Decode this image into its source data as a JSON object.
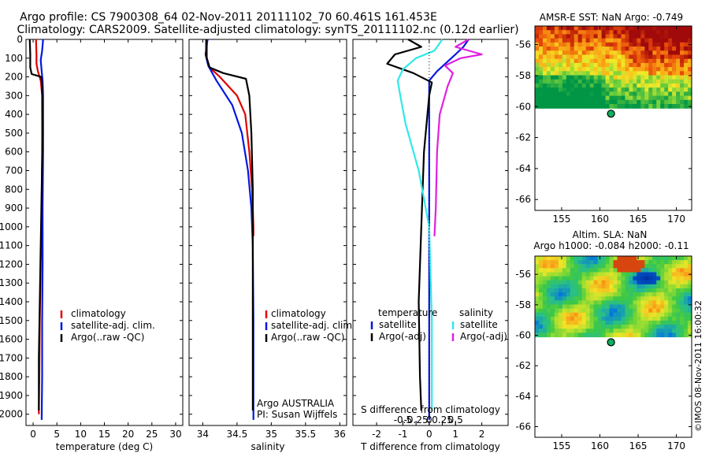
{
  "title": {
    "line1": "Argo profile: CS 7900308_64 02-Nov-2011 20111102_70 60.461S 161.453E",
    "line2": "Climatology: CARS2009. Satellite-adjusted climatology: synTS_20111102.nc (0.12d earlier)"
  },
  "copyright": "©IMOS 08-Nov-2011 16:00:32",
  "colors": {
    "climatology": "#e00000",
    "satellite": "#0018e0",
    "argo": "#000000",
    "cyan": "#30e8e8",
    "magenta": "#e020e0"
  },
  "chart_data": [
    {
      "id": "temperature",
      "type": "line",
      "xlabel": "temperature (deg C)",
      "xlim": [
        -1.5,
        31.5
      ],
      "ylim": [
        2060,
        0
      ],
      "xticks": [
        0,
        5,
        10,
        15,
        20,
        25,
        30
      ],
      "yticks": [
        0,
        100,
        200,
        300,
        400,
        500,
        600,
        700,
        800,
        900,
        1000,
        1100,
        1200,
        1300,
        1400,
        1500,
        1600,
        1700,
        1800,
        1900,
        2000
      ],
      "legend": [
        "climatology",
        "satellite-adj. clim.",
        "Argo(..raw -QC)"
      ],
      "series": [
        {
          "name": "climatology",
          "color": "climatology",
          "x": [
            0.6,
            0.7,
            0.7,
            1.0,
            1.6,
            1.9,
            1.9,
            1.8,
            1.6,
            1.4,
            1.3,
            1.2
          ],
          "y": [
            0,
            80,
            130,
            170,
            220,
            300,
            600,
            900,
            1200,
            1500,
            1800,
            2000
          ]
        },
        {
          "name": "satellite-adj. clim.",
          "color": "satellite",
          "x": [
            2.1,
            1.9,
            1.6,
            1.8,
            2.0,
            2.1,
            2.1,
            2.0,
            2.0,
            1.9,
            1.9,
            1.8
          ],
          "y": [
            0,
            60,
            110,
            170,
            220,
            300,
            600,
            900,
            1200,
            1500,
            1800,
            2030
          ]
        },
        {
          "name": "Argo(..raw -QC)",
          "color": "argo",
          "x": [
            -0.7,
            -0.6,
            -0.6,
            -0.3,
            1.7,
            1.9,
            2.0,
            1.8,
            1.6,
            1.4,
            1.2,
            1.2
          ],
          "y": [
            0,
            80,
            150,
            185,
            200,
            250,
            500,
            800,
            1100,
            1400,
            1700,
            1980
          ]
        }
      ]
    },
    {
      "id": "salinity",
      "type": "line",
      "xlabel": "salinity",
      "xlim": [
        33.8,
        36.1
      ],
      "ylim": [
        2060,
        0
      ],
      "xticks": [
        34,
        34.5,
        35,
        35.5,
        36
      ],
      "xtick_labels": [
        "34",
        "34.5",
        "35",
        "35.5",
        "36"
      ],
      "legend": [
        "climatology",
        "satellite-adj. clim.",
        "Argo(..raw -QC)"
      ],
      "annotation": [
        "Argo AUSTRALIA",
        "PI: Susan Wijffels"
      ],
      "series": [
        {
          "name": "climatology",
          "color": "climatology",
          "x": [
            34.06,
            34.06,
            34.1,
            34.25,
            34.5,
            34.62,
            34.68,
            34.72,
            34.74,
            34.74
          ],
          "y": [
            0,
            100,
            150,
            200,
            300,
            400,
            600,
            800,
            1000,
            1050
          ]
        },
        {
          "name": "satellite-adj. clim.",
          "color": "satellite",
          "x": [
            34.07,
            34.04,
            34.08,
            34.2,
            34.43,
            34.57,
            34.66,
            34.71,
            34.73,
            34.74,
            34.74
          ],
          "y": [
            0,
            80,
            140,
            220,
            350,
            500,
            700,
            900,
            1100,
            1500,
            2030
          ]
        },
        {
          "name": "Argo(..raw -QC)",
          "color": "argo",
          "x": [
            34.05,
            34.05,
            34.1,
            34.3,
            34.63,
            34.68,
            34.71,
            34.73,
            34.73,
            34.73,
            34.73
          ],
          "y": [
            0,
            90,
            150,
            180,
            210,
            300,
            500,
            800,
            1200,
            1600,
            1980
          ]
        }
      ]
    },
    {
      "id": "difference",
      "type": "line",
      "xlabel": "T difference from climatology",
      "top_label": "S difference from climatology",
      "xlim": [
        -2.9,
        3.0
      ],
      "ylim": [
        2060,
        0
      ],
      "xticks": [
        -2,
        -1,
        0,
        1,
        2
      ],
      "xtick_labels": [
        "-2",
        "-1",
        "0",
        "1",
        "2"
      ],
      "sticks": [
        -1.0,
        -0.5,
        0,
        0.5,
        1.0
      ],
      "stick_labels": [
        "-0.5",
        "-0.25",
        "0",
        "0.25",
        "0.5"
      ],
      "legend_headers": [
        "temperature",
        "salinity"
      ],
      "legend": [
        {
          "label": "satellite",
          "color": "satellite",
          "col": 0
        },
        {
          "label": "Argo(-adj)",
          "color": "argo",
          "col": 0
        },
        {
          "label": "satellite",
          "color": "cyan",
          "col": 1
        },
        {
          "label": "Argo(-adj)",
          "color": "magenta",
          "col": 1
        }
      ],
      "series": [
        {
          "name": "temperature satellite",
          "color": "satellite",
          "x": [
            1.5,
            1.3,
            1.0,
            0.3,
            0.0,
            0.0,
            0.0,
            0.0,
            0.0,
            0.0
          ],
          "y": [
            0,
            40,
            80,
            170,
            220,
            300,
            700,
            1200,
            1700,
            2030
          ]
        },
        {
          "name": "temperature Argo(-adj)",
          "color": "argo",
          "x": [
            -0.8,
            -0.3,
            -1.3,
            -1.6,
            -0.6,
            0.1,
            0.0,
            -0.2,
            -0.3,
            -0.4,
            -0.35,
            -0.3
          ],
          "y": [
            0,
            40,
            80,
            130,
            180,
            230,
            300,
            600,
            1000,
            1400,
            1800,
            1980
          ]
        },
        {
          "name": "salinity satellite",
          "color": "cyan",
          "x": [
            0.5,
            0.2,
            -0.5,
            -1.0,
            -1.2,
            -1.1,
            -0.9,
            -0.4,
            0.0,
            0.1,
            0.1
          ],
          "y": [
            0,
            60,
            100,
            160,
            220,
            300,
            450,
            700,
            1000,
            1500,
            1980
          ]
        },
        {
          "name": "salinity Argo(-adj)",
          "color": "magenta",
          "x": [
            1.5,
            1.0,
            2.0,
            1.2,
            0.6,
            0.9,
            0.7,
            0.4,
            0.3,
            0.25,
            0.2
          ],
          "y": [
            0,
            40,
            80,
            100,
            140,
            180,
            250,
            400,
            600,
            900,
            1050
          ]
        }
      ]
    },
    {
      "id": "amsr-sst-map",
      "type": "heatmap",
      "title": "AMSR-E SST: NaN Argo: -0.749",
      "xlim": [
        151.5,
        172
      ],
      "ylim": [
        -66.7,
        -54.8
      ],
      "xticks": [
        155,
        160,
        165,
        170
      ],
      "yticks": [
        -56,
        -58,
        -60,
        -62,
        -64,
        -66
      ],
      "argo_position": {
        "lon": 161.45,
        "lat": -60.46
      }
    },
    {
      "id": "altim-sla-map",
      "type": "heatmap",
      "title": "Altim. SLA: NaN",
      "subtitle": "Argo h1000: -0.084 h2000: -0.11",
      "xlim": [
        151.5,
        172
      ],
      "ylim": [
        -66.7,
        -54.8
      ],
      "xticks": [
        155,
        160,
        165,
        170
      ],
      "yticks": [
        -56,
        -58,
        -60,
        -62,
        -64,
        -66
      ],
      "argo_position": {
        "lon": 161.45,
        "lat": -60.46
      }
    }
  ]
}
